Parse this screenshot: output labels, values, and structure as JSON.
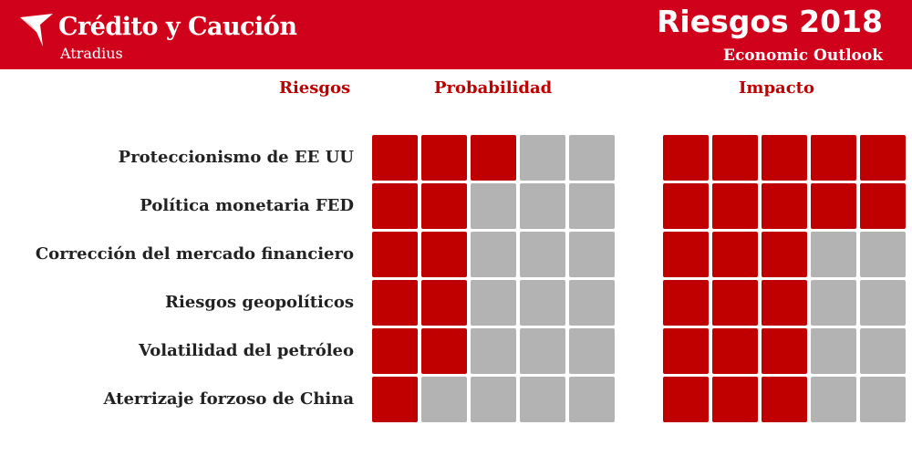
{
  "header": {
    "brand": "Crédito y Caución",
    "brand_sub": "Atradius",
    "title": "Riesgos 2018",
    "subtitle": "Economic Outlook"
  },
  "colors": {
    "brand_red": "#d0021b",
    "filled": "#c00000",
    "empty": "#b3b3b3"
  },
  "chart_data": {
    "type": "table",
    "scale_max": 5,
    "column_headers": {
      "risks": "Riesgos",
      "probability": "Probabilidad",
      "impact": "Impacto"
    },
    "rows": [
      {
        "label": "Proteccionismo de EE UU",
        "probability": 3,
        "impact": 5
      },
      {
        "label": "Política monetaria FED",
        "probability": 2,
        "impact": 5
      },
      {
        "label": "Corrección del  mercado financiero",
        "probability": 2,
        "impact": 3
      },
      {
        "label": "Riesgos geopolíticos",
        "probability": 2,
        "impact": 3
      },
      {
        "label": "Volatilidad del petróleo",
        "probability": 2,
        "impact": 3
      },
      {
        "label": "Aterrizaje forzoso de China",
        "probability": 1,
        "impact": 3
      }
    ]
  }
}
